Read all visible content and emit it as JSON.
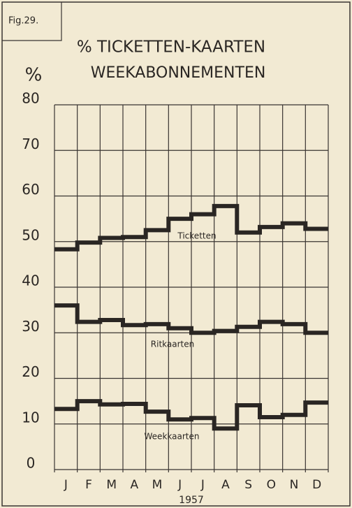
{
  "chart_data": {
    "type": "line",
    "step": true,
    "figure_label": "Fig.29.",
    "title": "% TICKETTEN-KAARTEN",
    "subtitle": "WEEKABONNEMENTEN",
    "y_axis_label": "%",
    "x_axis_label": "1957",
    "categories": [
      "J",
      "F",
      "M",
      "A",
      "M",
      "J",
      "J",
      "A",
      "S",
      "O",
      "N",
      "D"
    ],
    "series": [
      {
        "name": "Ticketten",
        "color": "#2a2623",
        "values": [
          48.3,
          49.8,
          50.8,
          51,
          52.5,
          55,
          56,
          57.8,
          52,
          53.2,
          54,
          52.8
        ]
      },
      {
        "name": "Ritkaarten",
        "color": "#2a2623",
        "values": [
          36,
          32.4,
          32.8,
          31.7,
          31.9,
          31,
          30,
          30.4,
          31.3,
          32.4,
          31.9,
          30
        ]
      },
      {
        "name": "Weekkaarten",
        "color": "#2a2623",
        "values": [
          13.3,
          15,
          14.3,
          14.4,
          12.7,
          11,
          11.3,
          9,
          14.1,
          11.5,
          12,
          14.7
        ]
      }
    ],
    "ylim": [
      0,
      80
    ],
    "yticks": [
      0,
      10,
      20,
      30,
      40,
      50,
      60,
      70,
      80
    ],
    "grid": true
  }
}
